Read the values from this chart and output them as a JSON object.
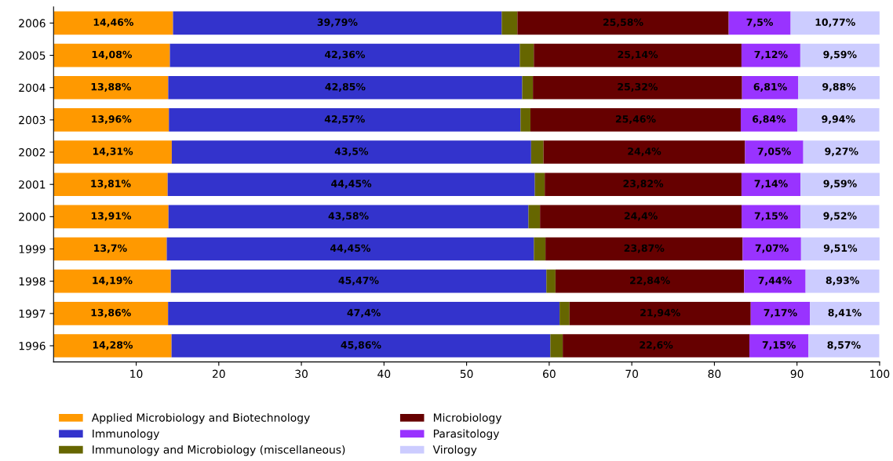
{
  "chart_data": {
    "type": "bar",
    "orientation": "horizontal",
    "stacked": true,
    "categories": [
      "2006",
      "2005",
      "2004",
      "2003",
      "2002",
      "2001",
      "2000",
      "1999",
      "1998",
      "1997",
      "1996"
    ],
    "series": [
      {
        "name": "Applied Microbiology and Biotechnology",
        "color": "#ff9900",
        "values": [
          14.46,
          14.08,
          13.88,
          13.96,
          14.31,
          13.81,
          13.91,
          13.7,
          14.19,
          13.86,
          14.28
        ],
        "value_labels": [
          "14,46%",
          "14,08%",
          "13,88%",
          "13,96%",
          "14,31%",
          "13,81%",
          "13,91%",
          "13,7%",
          "14,19%",
          "13,86%",
          "14,28%"
        ]
      },
      {
        "name": "Immunology",
        "color": "#3333cc",
        "values": [
          39.79,
          42.36,
          42.85,
          42.57,
          43.5,
          44.45,
          43.58,
          44.45,
          45.47,
          47.4,
          45.86
        ],
        "value_labels": [
          "39,79%",
          "42,36%",
          "42,85%",
          "42,57%",
          "43,5%",
          "44,45%",
          "43,58%",
          "44,45%",
          "45,47%",
          "47,4%",
          "45,86%"
        ]
      },
      {
        "name": "Immunology and Microbiology (miscellaneous)",
        "color": "#666600",
        "values": [
          1.9,
          1.7,
          1.3,
          1.2,
          1.5,
          1.2,
          1.4,
          1.4,
          1.1,
          1.2,
          1.5
        ]
      },
      {
        "name": "Microbiology",
        "color": "#660000",
        "values": [
          25.58,
          25.14,
          25.32,
          25.46,
          24.4,
          23.82,
          24.4,
          23.87,
          22.84,
          21.94,
          22.6
        ],
        "value_labels": [
          "25,58%",
          "25,14%",
          "25,32%",
          "25,46%",
          "24,4%",
          "23,82%",
          "24,4%",
          "23,87%",
          "22,84%",
          "21,94%",
          "22,6%"
        ]
      },
      {
        "name": "Parasitology",
        "color": "#9933ff",
        "values": [
          7.5,
          7.12,
          6.81,
          6.84,
          7.05,
          7.14,
          7.15,
          7.07,
          7.44,
          7.17,
          7.15
        ],
        "value_labels": [
          "7,5%",
          "7,12%",
          "6,81%",
          "6,84%",
          "7,05%",
          "7,14%",
          "7,15%",
          "7,07%",
          "7,44%",
          "7,17%",
          "7,15%"
        ]
      },
      {
        "name": "Virology",
        "color": "#ccccff",
        "values": [
          10.77,
          9.59,
          9.88,
          9.94,
          9.27,
          9.59,
          9.52,
          9.51,
          8.93,
          8.41,
          8.57
        ],
        "value_labels": [
          "10,77%",
          "9,59%",
          "9,88%",
          "9,94%",
          "9,27%",
          "9,59%",
          "9,52%",
          "9,51%",
          "8,93%",
          "8,41%",
          "8,57%"
        ]
      }
    ],
    "xlim": [
      0,
      100
    ],
    "xticks": [
      10,
      20,
      30,
      40,
      50,
      60,
      70,
      80,
      90,
      100
    ],
    "grid": false,
    "legend": "bottom"
  }
}
